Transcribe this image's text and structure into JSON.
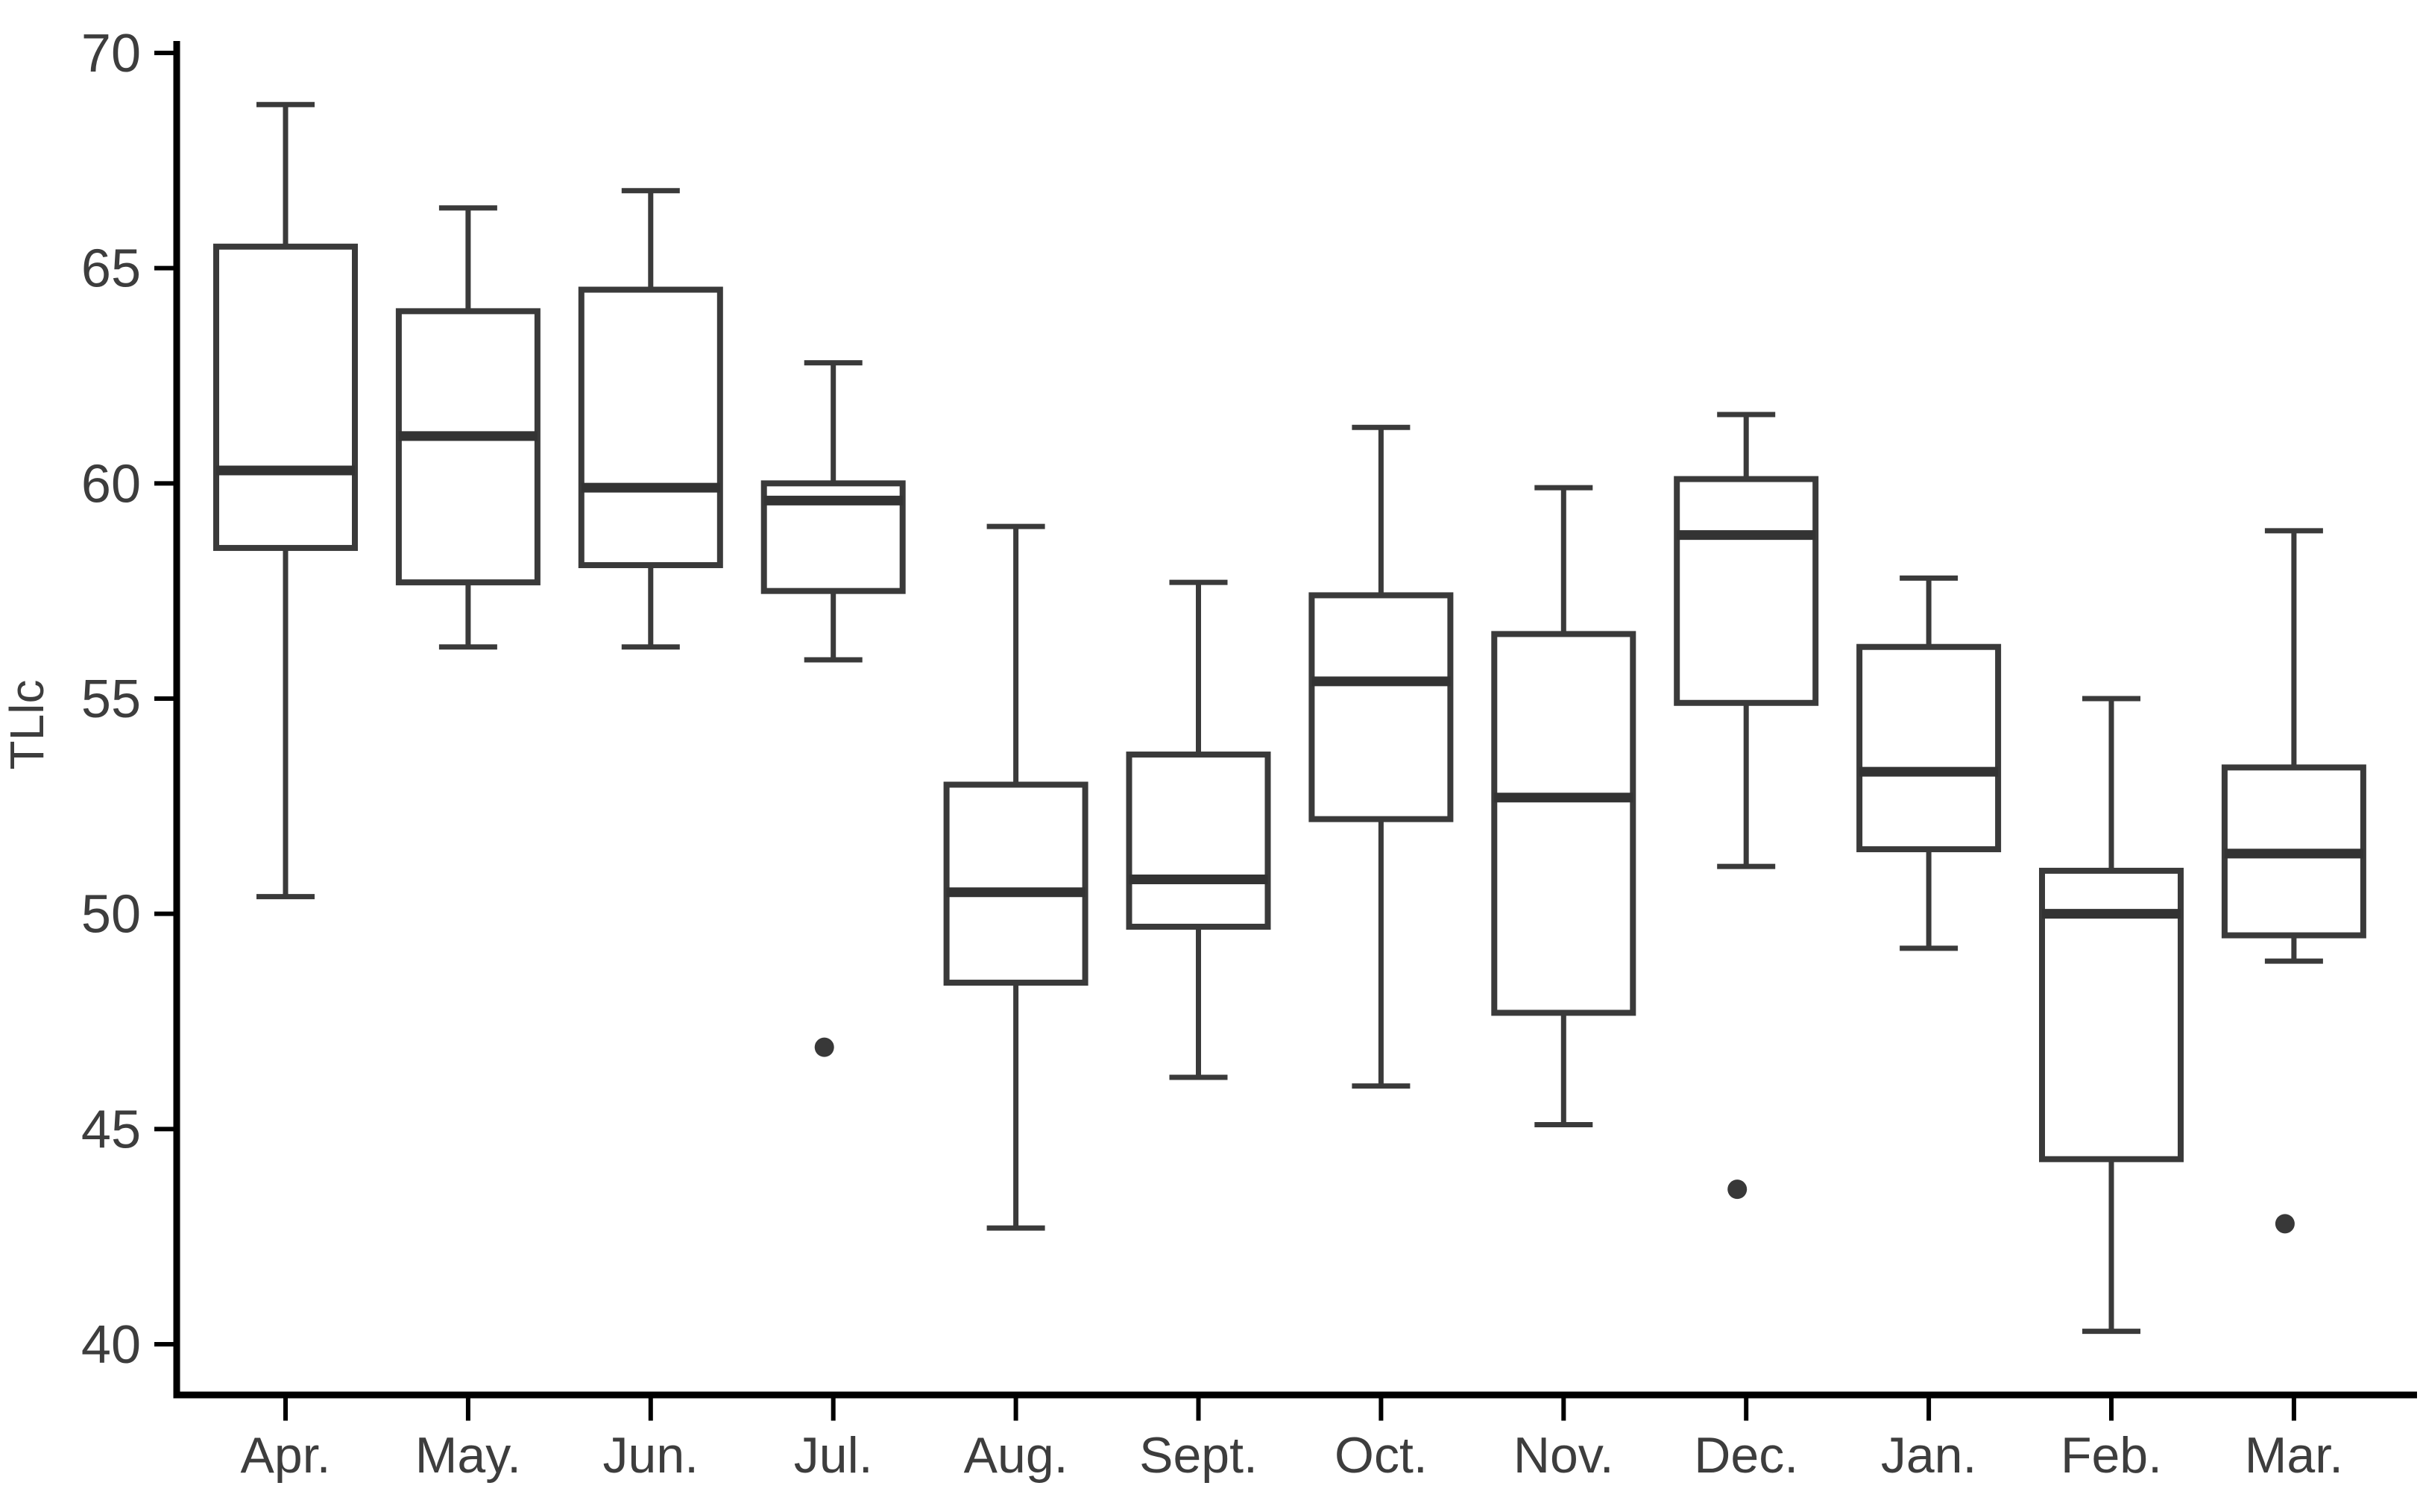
{
  "chart_data": {
    "type": "boxplot",
    "title": "",
    "xlabel": "",
    "ylabel": "TLlc",
    "y_ticks": [
      40,
      45,
      50,
      55,
      60,
      65,
      70
    ],
    "ylim": [
      38.8,
      70.6
    ],
    "grid": "off",
    "legend": "none",
    "categories": [
      "Apr.",
      "May.",
      "Jun.",
      "Jul.",
      "Aug.",
      "Sept.",
      "Oct.",
      "Nov.",
      "Dec.",
      "Jan.",
      "Feb.",
      "Mar."
    ],
    "series": [
      {
        "key": "apr",
        "label": "Apr.",
        "min": 50.4,
        "q1": 58.5,
        "median": 60.3,
        "q3": 65.5,
        "max": 68.8,
        "outliers": []
      },
      {
        "key": "may",
        "label": "May.",
        "min": 56.2,
        "q1": 57.7,
        "median": 61.1,
        "q3": 64.0,
        "max": 66.4,
        "outliers": []
      },
      {
        "key": "jun",
        "label": "Jun.",
        "min": 56.2,
        "q1": 58.1,
        "median": 59.9,
        "q3": 64.5,
        "max": 66.8,
        "outliers": []
      },
      {
        "key": "jul",
        "label": "Jul.",
        "min": 55.9,
        "q1": 57.5,
        "median": 59.6,
        "q3": 60.0,
        "max": 62.8,
        "outliers": [
          46.9
        ]
      },
      {
        "key": "aug",
        "label": "Aug.",
        "min": 42.7,
        "q1": 48.4,
        "median": 50.5,
        "q3": 53.0,
        "max": 59.0,
        "outliers": []
      },
      {
        "key": "sept",
        "label": "Sept.",
        "min": 46.2,
        "q1": 49.7,
        "median": 50.8,
        "q3": 53.7,
        "max": 57.7,
        "outliers": []
      },
      {
        "key": "oct",
        "label": "Oct.",
        "min": 46.0,
        "q1": 52.2,
        "median": 55.4,
        "q3": 57.4,
        "max": 61.3,
        "outliers": []
      },
      {
        "key": "nov",
        "label": "Nov.",
        "min": 45.1,
        "q1": 47.7,
        "median": 52.7,
        "q3": 56.5,
        "max": 59.9,
        "outliers": []
      },
      {
        "key": "dec",
        "label": "Dec.",
        "min": 51.1,
        "q1": 54.9,
        "median": 58.8,
        "q3": 60.1,
        "max": 61.6,
        "outliers": [
          43.6
        ]
      },
      {
        "key": "jan",
        "label": "Jan.",
        "min": 49.2,
        "q1": 51.5,
        "median": 53.3,
        "q3": 56.2,
        "max": 57.8,
        "outliers": []
      },
      {
        "key": "feb",
        "label": "Feb.",
        "min": 40.3,
        "q1": 44.3,
        "median": 50.0,
        "q3": 51.0,
        "max": 55.0,
        "outliers": []
      },
      {
        "key": "mar",
        "label": "Mar.",
        "min": 48.9,
        "q1": 49.5,
        "median": 51.4,
        "q3": 53.4,
        "max": 58.9,
        "outliers": [
          42.8
        ]
      }
    ],
    "colors": {
      "background": "#ffffff",
      "axis": "#000000",
      "box_stroke": "#3a3a3a",
      "median": "#333333",
      "outlier": "#383838",
      "text": "#3d3d3d"
    }
  }
}
